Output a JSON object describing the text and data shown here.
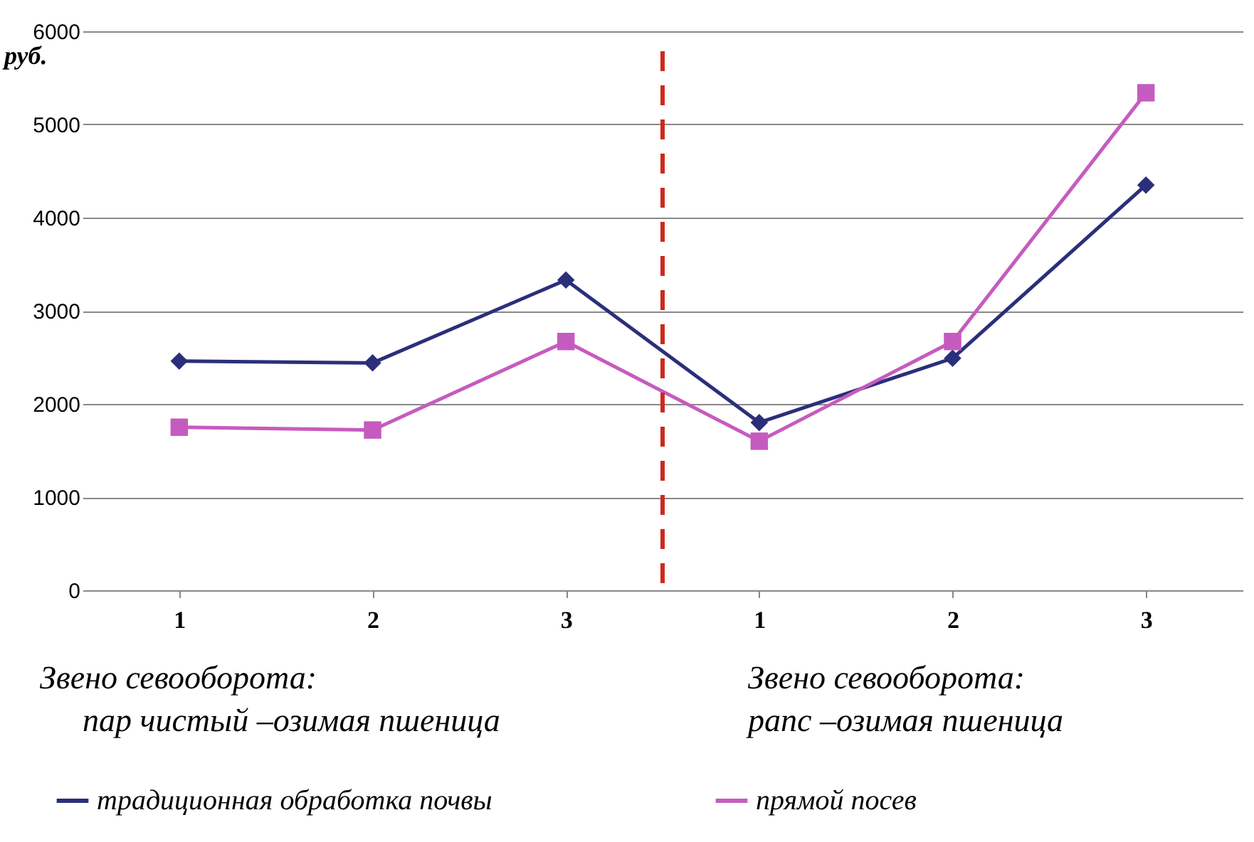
{
  "chart_data": {
    "type": "line",
    "ylabel": "руб.",
    "categories": [
      "1",
      "2",
      "3",
      "1",
      "2",
      "3"
    ],
    "series": [
      {
        "name": "традиционная обработка почвы",
        "color": "#2b2f7a",
        "marker": "diamond",
        "values": [
          2460,
          2440,
          3330,
          1800,
          2490,
          4350
        ]
      },
      {
        "name": "прямой посев",
        "color": "#c65bbf",
        "marker": "square",
        "values": [
          1750,
          1720,
          2670,
          1600,
          2670,
          5340
        ]
      }
    ],
    "ylim": [
      0,
      6000
    ],
    "yticks": [
      0,
      1000,
      2000,
      3000,
      4000,
      5000,
      6000
    ],
    "grid": "y",
    "legend": "bottom",
    "annotations": [
      "Звено севооборота:",
      "пар чистый –озимая пшеница",
      "Звено севооборота:",
      "рапс –озимая пшеница"
    ]
  }
}
